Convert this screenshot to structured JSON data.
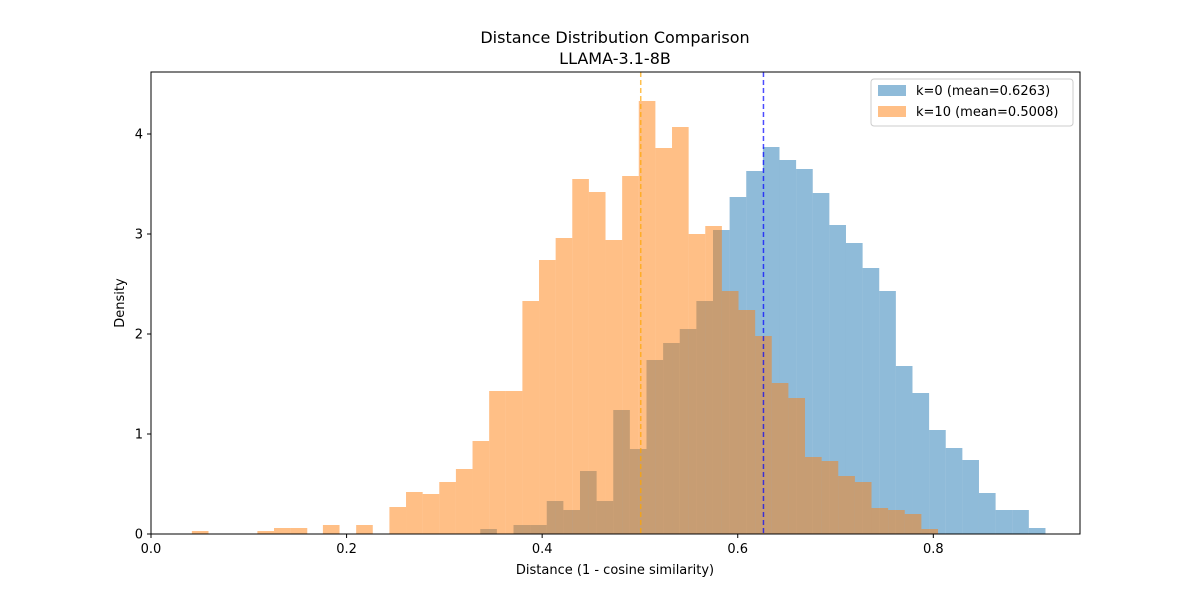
{
  "chart_data": {
    "type": "histogram",
    "title": "Distance Distribution Comparison",
    "subtitle": "LLAMA-3.1-8B",
    "xlabel": "Distance (1 - cosine similarity)",
    "ylabel": "Density",
    "xlim": [
      0.0,
      0.95
    ],
    "ylim": [
      0,
      4.62
    ],
    "xticks": [
      0.0,
      0.2,
      0.4,
      0.6,
      0.8
    ],
    "xtick_labels": [
      "0.0",
      "0.2",
      "0.4",
      "0.6",
      "0.8"
    ],
    "yticks": [
      0,
      1,
      2,
      3,
      4
    ],
    "ytick_labels": [
      "0",
      "1",
      "2",
      "3",
      "4"
    ],
    "grid": false,
    "legend_position": "top-right",
    "series": [
      {
        "name": "k=0 (mean=0.6263)",
        "color": "#1f77b4",
        "alpha": 0.5,
        "mean": 0.6263,
        "mean_line_color": "#0000ff",
        "bins": [
          {
            "x0": 0.3367,
            "x1": 0.3537,
            "y": 0.05
          },
          {
            "x0": 0.3707,
            "x1": 0.3877,
            "y": 0.09
          },
          {
            "x0": 0.3877,
            "x1": 0.4047,
            "y": 0.09
          },
          {
            "x0": 0.4047,
            "x1": 0.4217,
            "y": 0.33
          },
          {
            "x0": 0.4217,
            "x1": 0.4387,
            "y": 0.24
          },
          {
            "x0": 0.4387,
            "x1": 0.4557,
            "y": 0.63
          },
          {
            "x0": 0.4557,
            "x1": 0.4727,
            "y": 0.33
          },
          {
            "x0": 0.4727,
            "x1": 0.4897,
            "y": 1.24
          },
          {
            "x0": 0.4897,
            "x1": 0.5067,
            "y": 0.85
          },
          {
            "x0": 0.5067,
            "x1": 0.5237,
            "y": 1.74
          },
          {
            "x0": 0.5237,
            "x1": 0.5407,
            "y": 1.91
          },
          {
            "x0": 0.5407,
            "x1": 0.5577,
            "y": 2.05
          },
          {
            "x0": 0.5577,
            "x1": 0.5747,
            "y": 2.33
          },
          {
            "x0": 0.5747,
            "x1": 0.5917,
            "y": 3.04
          },
          {
            "x0": 0.5917,
            "x1": 0.6087,
            "y": 3.37
          },
          {
            "x0": 0.6087,
            "x1": 0.6257,
            "y": 3.63
          },
          {
            "x0": 0.6257,
            "x1": 0.6427,
            "y": 3.87
          },
          {
            "x0": 0.6427,
            "x1": 0.6597,
            "y": 3.74
          },
          {
            "x0": 0.6597,
            "x1": 0.6767,
            "y": 3.65
          },
          {
            "x0": 0.6767,
            "x1": 0.6937,
            "y": 3.41
          },
          {
            "x0": 0.6937,
            "x1": 0.7107,
            "y": 3.09
          },
          {
            "x0": 0.7107,
            "x1": 0.7277,
            "y": 2.91
          },
          {
            "x0": 0.7277,
            "x1": 0.7447,
            "y": 2.66
          },
          {
            "x0": 0.7447,
            "x1": 0.7617,
            "y": 2.43
          },
          {
            "x0": 0.7617,
            "x1": 0.7787,
            "y": 1.68
          },
          {
            "x0": 0.7787,
            "x1": 0.7957,
            "y": 1.41
          },
          {
            "x0": 0.7957,
            "x1": 0.8127,
            "y": 1.04
          },
          {
            "x0": 0.8127,
            "x1": 0.8297,
            "y": 0.86
          },
          {
            "x0": 0.8297,
            "x1": 0.8467,
            "y": 0.74
          },
          {
            "x0": 0.8467,
            "x1": 0.8637,
            "y": 0.41
          },
          {
            "x0": 0.8637,
            "x1": 0.8807,
            "y": 0.24
          },
          {
            "x0": 0.8807,
            "x1": 0.8977,
            "y": 0.24
          },
          {
            "x0": 0.8977,
            "x1": 0.9147,
            "y": 0.06
          }
        ]
      },
      {
        "name": "k=10 (mean=0.5008)",
        "color": "#ff7f0e",
        "alpha": 0.5,
        "mean": 0.5008,
        "mean_line_color": "#ffa500",
        "bins": [
          {
            "x0": 0.0418,
            "x1": 0.0588,
            "y": 0.03
          },
          {
            "x0": 0.1088,
            "x1": 0.1258,
            "y": 0.03
          },
          {
            "x0": 0.1258,
            "x1": 0.1428,
            "y": 0.06
          },
          {
            "x0": 0.1428,
            "x1": 0.1598,
            "y": 0.06
          },
          {
            "x0": 0.1758,
            "x1": 0.1928,
            "y": 0.09
          },
          {
            "x0": 0.2098,
            "x1": 0.2268,
            "y": 0.09
          },
          {
            "x0": 0.2438,
            "x1": 0.2608,
            "y": 0.27
          },
          {
            "x0": 0.2608,
            "x1": 0.2778,
            "y": 0.42
          },
          {
            "x0": 0.2778,
            "x1": 0.2948,
            "y": 0.4
          },
          {
            "x0": 0.2948,
            "x1": 0.3118,
            "y": 0.52
          },
          {
            "x0": 0.3118,
            "x1": 0.3288,
            "y": 0.65
          },
          {
            "x0": 0.3288,
            "x1": 0.3458,
            "y": 0.93
          },
          {
            "x0": 0.3458,
            "x1": 0.3628,
            "y": 1.43
          },
          {
            "x0": 0.3628,
            "x1": 0.3798,
            "y": 1.43
          },
          {
            "x0": 0.3798,
            "x1": 0.3968,
            "y": 2.33
          },
          {
            "x0": 0.3968,
            "x1": 0.4138,
            "y": 2.74
          },
          {
            "x0": 0.4138,
            "x1": 0.4308,
            "y": 2.96
          },
          {
            "x0": 0.4308,
            "x1": 0.4478,
            "y": 3.55
          },
          {
            "x0": 0.4478,
            "x1": 0.4648,
            "y": 3.42
          },
          {
            "x0": 0.4648,
            "x1": 0.4818,
            "y": 2.94
          },
          {
            "x0": 0.4818,
            "x1": 0.4988,
            "y": 3.58
          },
          {
            "x0": 0.4988,
            "x1": 0.5158,
            "y": 4.33
          },
          {
            "x0": 0.5158,
            "x1": 0.5328,
            "y": 3.86
          },
          {
            "x0": 0.5328,
            "x1": 0.5498,
            "y": 4.07
          },
          {
            "x0": 0.5498,
            "x1": 0.5668,
            "y": 3.0
          },
          {
            "x0": 0.5668,
            "x1": 0.5838,
            "y": 3.08
          },
          {
            "x0": 0.5838,
            "x1": 0.6008,
            "y": 2.43
          },
          {
            "x0": 0.6008,
            "x1": 0.6178,
            "y": 2.24
          },
          {
            "x0": 0.6178,
            "x1": 0.6348,
            "y": 1.98
          },
          {
            "x0": 0.6348,
            "x1": 0.6518,
            "y": 1.51
          },
          {
            "x0": 0.6518,
            "x1": 0.6688,
            "y": 1.36
          },
          {
            "x0": 0.6688,
            "x1": 0.6858,
            "y": 0.77
          },
          {
            "x0": 0.6858,
            "x1": 0.7028,
            "y": 0.73
          },
          {
            "x0": 0.7028,
            "x1": 0.7198,
            "y": 0.58
          },
          {
            "x0": 0.7198,
            "x1": 0.7368,
            "y": 0.52
          },
          {
            "x0": 0.7368,
            "x1": 0.7538,
            "y": 0.26
          },
          {
            "x0": 0.7538,
            "x1": 0.7708,
            "y": 0.24
          },
          {
            "x0": 0.7708,
            "x1": 0.7878,
            "y": 0.2
          },
          {
            "x0": 0.7878,
            "x1": 0.8048,
            "y": 0.05
          }
        ]
      }
    ]
  }
}
